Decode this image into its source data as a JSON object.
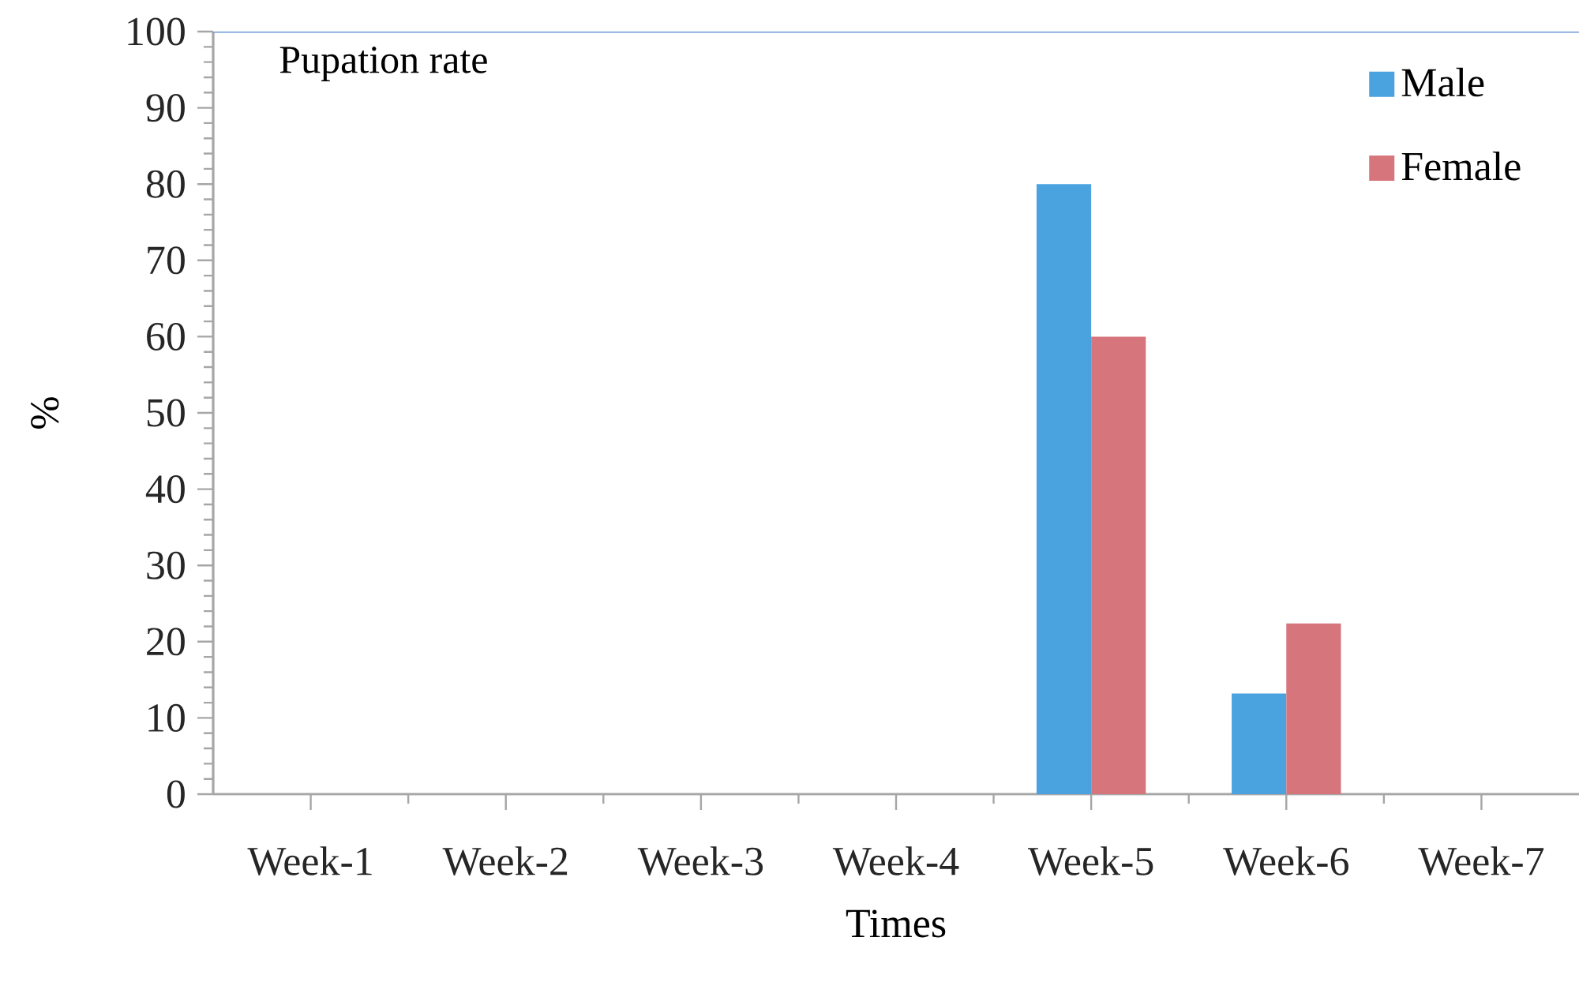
{
  "chart_data": {
    "type": "bar",
    "title": "Pupation rate",
    "xlabel": "Times",
    "ylabel": "%",
    "categories": [
      "Week-1",
      "Week-2",
      "Week-3",
      "Week-4",
      "Week-5",
      "Week-6",
      "Week-7"
    ],
    "series": [
      {
        "name": "Male",
        "color": "#4aa3df",
        "values": [
          0,
          0,
          0,
          0,
          80,
          13.2,
          0
        ]
      },
      {
        "name": "Female",
        "color": "#d7757d",
        "values": [
          0,
          0,
          0,
          0,
          60,
          22.4,
          0
        ]
      }
    ],
    "ylim": [
      0,
      100
    ],
    "yticks": [
      0,
      10,
      20,
      30,
      40,
      50,
      60,
      70,
      80,
      90,
      100
    ],
    "grid": false,
    "legend": "top right"
  }
}
